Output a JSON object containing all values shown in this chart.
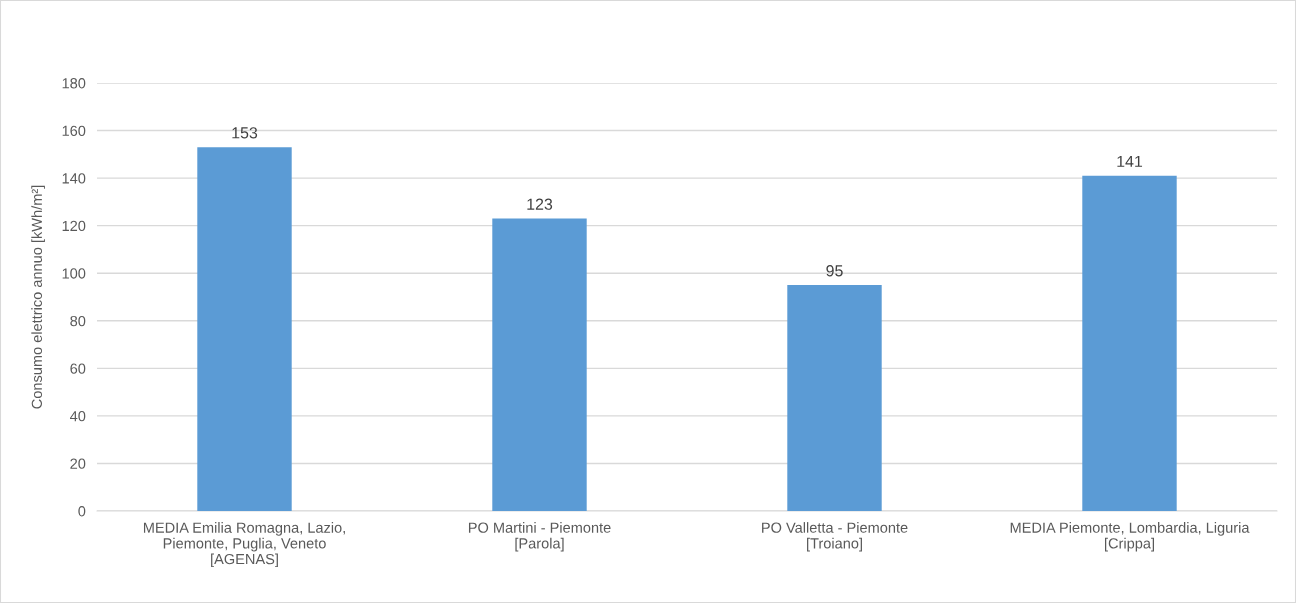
{
  "chart_data": {
    "type": "bar",
    "categories": [
      "MEDIA Emilia Romagna, Lazio,\nPiemonte, Puglia, Veneto\n[AGENAS]",
      "PO Martini - Piemonte\n[Parola]",
      "PO Valletta - Piemonte\n[Troiano]",
      "MEDIA Piemonte, Lombardia, Liguria\n[Crippa]"
    ],
    "values": [
      153,
      123,
      95,
      141
    ],
    "color": "#5b9bd5",
    "ylabel": "Consumo elettrico annuo [kWh/m²]",
    "ylim": [
      0,
      180
    ],
    "yticks": [
      0,
      20,
      40,
      60,
      80,
      100,
      120,
      140,
      160,
      180
    ],
    "grid": "y",
    "data_labels": true
  }
}
